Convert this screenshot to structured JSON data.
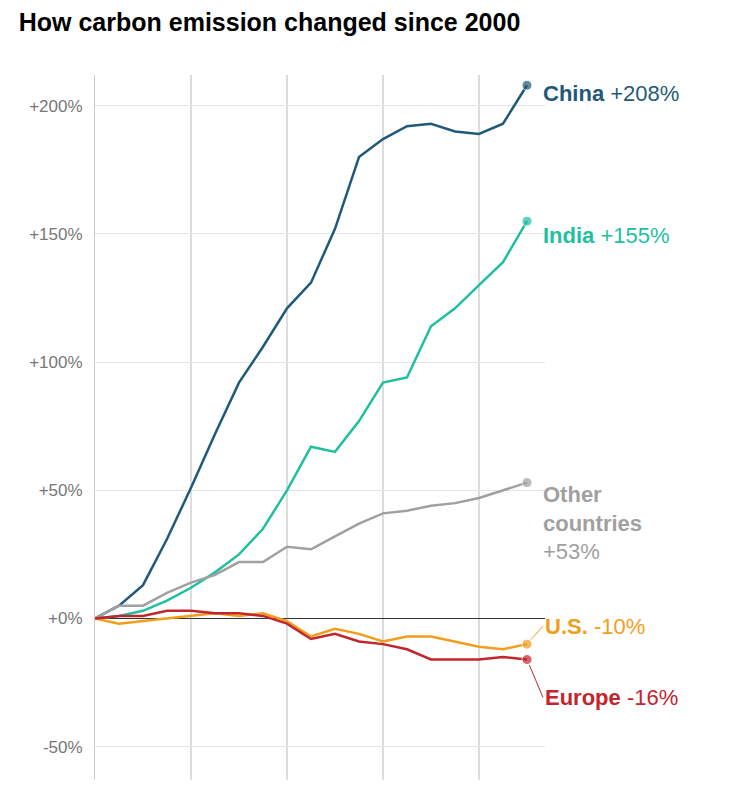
{
  "chart_data": {
    "type": "line",
    "title": "How carbon emission changed since 2000",
    "categories": [
      null,
      null,
      null,
      null,
      null,
      null,
      null,
      null,
      null,
      null,
      null,
      null,
      null,
      null,
      null,
      null,
      null,
      null,
      null
    ],
    "series": [
      {
        "name": "China",
        "color": "#1f5a78",
        "values": [
          0,
          5,
          13,
          31,
          51,
          72,
          92,
          106,
          121,
          131,
          152,
          180,
          187,
          192,
          193,
          190,
          189,
          193,
          208
        ],
        "value_labels": [
          null,
          null,
          null,
          null,
          null,
          null,
          null,
          null,
          null,
          null,
          null,
          null,
          null,
          null,
          null,
          null,
          null,
          null,
          "+208%"
        ]
      },
      {
        "name": "India",
        "color": "#1fbf9f",
        "values": [
          0,
          1,
          3,
          7,
          12,
          18,
          25,
          35,
          50,
          67,
          65,
          77,
          92,
          94,
          114,
          121,
          130,
          139,
          155
        ],
        "value_labels": [
          null,
          null,
          null,
          null,
          null,
          null,
          null,
          null,
          null,
          null,
          null,
          null,
          null,
          null,
          null,
          null,
          null,
          null,
          "+155%"
        ]
      },
      {
        "name": "Other countries",
        "color": "#a0a0a0",
        "values": [
          0,
          5,
          5,
          10,
          14,
          17,
          22,
          22,
          28,
          27,
          32,
          37,
          41,
          42,
          44,
          45,
          47,
          50,
          53
        ],
        "value_labels": [
          null,
          null,
          null,
          null,
          null,
          null,
          null,
          null,
          null,
          null,
          null,
          null,
          null,
          null,
          null,
          null,
          null,
          null,
          "+53%"
        ]
      },
      {
        "name": "U.S.",
        "color": "#f29d1c",
        "values": [
          0,
          -2,
          -1,
          0,
          1,
          2,
          1,
          2,
          -1,
          -7,
          -4,
          -6,
          -9,
          -7,
          -7,
          -9,
          -11,
          -12,
          -10
        ],
        "value_labels": [
          null,
          null,
          null,
          null,
          null,
          null,
          null,
          null,
          null,
          null,
          null,
          null,
          null,
          null,
          null,
          null,
          null,
          null,
          "-10%"
        ]
      },
      {
        "name": "Europe",
        "color": "#c3252c",
        "values": [
          0,
          1,
          1,
          3,
          3,
          2,
          2,
          1,
          -2,
          -8,
          -6,
          -9,
          -10,
          -12,
          -16,
          -16,
          -16,
          -15,
          -16
        ],
        "value_labels": [
          null,
          null,
          null,
          null,
          null,
          null,
          null,
          null,
          null,
          null,
          null,
          null,
          null,
          null,
          null,
          null,
          null,
          null,
          "-16%"
        ]
      }
    ],
    "ylim": [
      -63,
      212
    ],
    "yticks": [
      {
        "value": 200,
        "label": "+200%"
      },
      {
        "value": 150,
        "label": "+150%"
      },
      {
        "value": 100,
        "label": "+100%"
      },
      {
        "value": 50,
        "label": "+50%"
      },
      {
        "value": 0,
        "label": "+0%"
      },
      {
        "value": -50,
        "label": "-50%"
      }
    ],
    "grid": true,
    "tick_labels": "y"
  }
}
